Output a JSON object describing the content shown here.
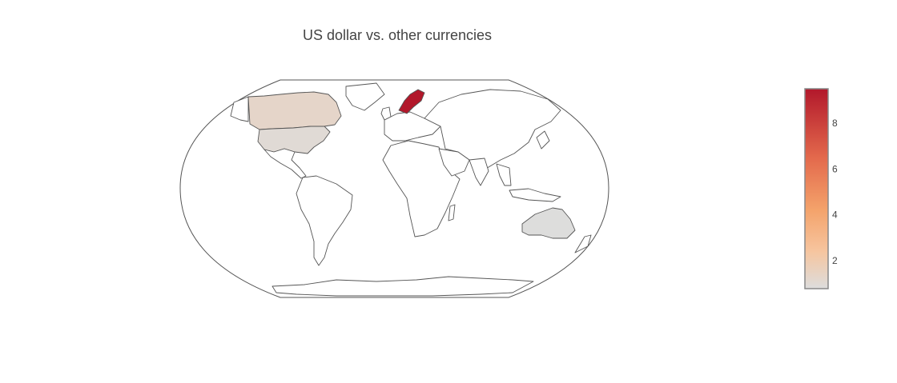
{
  "chart_data": {
    "type": "choropleth",
    "title": "US dollar vs. other currencies",
    "projection": "robinson",
    "colorscale": [
      [
        "#dddddd"
      ],
      [
        "#f6c59f"
      ],
      [
        "#f4a36b"
      ],
      [
        "#e3694c"
      ],
      [
        "#b2182b"
      ]
    ],
    "colorscale_stops": [
      {
        "value": 0.78,
        "color": "#dddddd"
      },
      {
        "value": 2.4,
        "color": "#f6c59f"
      },
      {
        "value": 4.2,
        "color": "#f4a36b"
      },
      {
        "value": 6.5,
        "color": "#e3694c"
      },
      {
        "value": 9.5,
        "color": "#b2182b"
      }
    ],
    "zrange": [
      0.78,
      9.5
    ],
    "colorbar_ticks": [
      2,
      4,
      6,
      8
    ],
    "regions": [
      {
        "name": "Sweden",
        "value": 9.5
      },
      {
        "name": "Canada",
        "value": 1.3
      },
      {
        "name": "United States",
        "value": 1.0
      },
      {
        "name": "Australia",
        "value": 0.8
      }
    ],
    "land_color": "#ffffff",
    "coast_color": "#555555"
  }
}
